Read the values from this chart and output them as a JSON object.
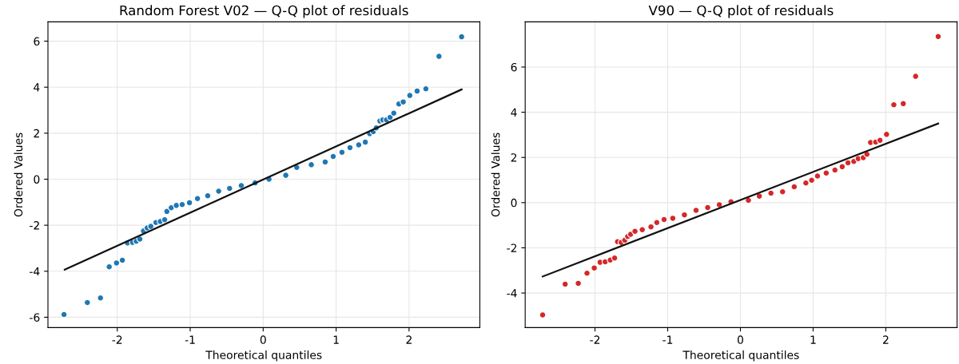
{
  "chart_data": [
    {
      "type": "scatter",
      "title": "Random Forest V02 — Q-Q plot of residuals",
      "xlabel": "Theoretical quantiles",
      "ylabel": "Ordered Values",
      "xlim": [
        -2.95,
        2.97
      ],
      "ylim": [
        -6.45,
        6.84
      ],
      "xticks": [
        -2,
        -1,
        0,
        1,
        2
      ],
      "yticks": [
        -6,
        -4,
        -2,
        0,
        2,
        4,
        6
      ],
      "grid": true,
      "series": [
        {
          "marker": "circle",
          "color": "#1f77b4",
          "x": [
            -2.73,
            -2.41,
            -2.23,
            -2.11,
            -2.01,
            -1.93,
            -1.86,
            -1.79,
            -1.74,
            -1.69,
            -1.64,
            -1.59,
            -1.54,
            -1.47,
            -1.41,
            -1.35,
            -1.32,
            -1.26,
            -1.19,
            -1.11,
            -1.01,
            -0.9,
            -0.76,
            -0.61,
            -0.46,
            -0.3,
            -0.11,
            0.08,
            0.31,
            0.46,
            0.66,
            0.85,
            0.96,
            1.08,
            1.19,
            1.31,
            1.4,
            1.46,
            1.51,
            1.55,
            1.6,
            1.64,
            1.69,
            1.74,
            1.79,
            1.86,
            1.92,
            2.01,
            2.11,
            2.23,
            2.41,
            2.72
          ],
          "values": [
            -5.88,
            -5.36,
            -5.16,
            -3.81,
            -3.64,
            -3.52,
            -2.77,
            -2.75,
            -2.7,
            -2.6,
            -2.25,
            -2.12,
            -2.05,
            -1.88,
            -1.84,
            -1.76,
            -1.4,
            -1.24,
            -1.14,
            -1.1,
            -1.02,
            -0.84,
            -0.72,
            -0.52,
            -0.4,
            -0.28,
            -0.16,
            0.0,
            0.17,
            0.51,
            0.63,
            0.75,
            0.99,
            1.17,
            1.37,
            1.49,
            1.61,
            1.98,
            2.07,
            2.23,
            2.53,
            2.58,
            2.58,
            2.69,
            2.87,
            3.27,
            3.36,
            3.64,
            3.83,
            3.93,
            5.34,
            6.19
          ]
        },
        {
          "type": "line",
          "color": "#111111",
          "x": [
            -2.72,
            2.72
          ],
          "values": [
            -3.93,
            3.9
          ]
        }
      ]
    },
    {
      "type": "scatter",
      "title": "V90 — Q-Q plot of residuals",
      "xlabel": "Theoretical quantiles",
      "ylabel": "Ordered Values",
      "xlim": [
        -2.96,
        2.98
      ],
      "ylim": [
        -5.53,
        8.0
      ],
      "xticks": [
        -2,
        -1,
        0,
        1,
        2
      ],
      "yticks": [
        -4,
        -2,
        0,
        2,
        4,
        6
      ],
      "grid": true,
      "series": [
        {
          "marker": "circle",
          "color": "#d62728",
          "x": [
            -2.72,
            -2.41,
            -2.23,
            -2.11,
            -2.01,
            -1.93,
            -1.86,
            -1.79,
            -1.73,
            -1.69,
            -1.64,
            -1.59,
            -1.55,
            -1.51,
            -1.45,
            -1.35,
            -1.23,
            -1.15,
            -1.05,
            -0.93,
            -0.77,
            -0.61,
            -0.45,
            -0.29,
            -0.13,
            0.11,
            0.26,
            0.42,
            0.58,
            0.74,
            0.9,
            0.98,
            1.06,
            1.18,
            1.3,
            1.4,
            1.48,
            1.56,
            1.62,
            1.69,
            1.74,
            1.79,
            1.86,
            1.92,
            2.01,
            2.11,
            2.24,
            2.41,
            2.72
          ],
          "values": [
            -4.97,
            -3.61,
            -3.57,
            -3.12,
            -2.89,
            -2.64,
            -2.62,
            -2.54,
            -2.45,
            -1.73,
            -1.76,
            -1.66,
            -1.5,
            -1.4,
            -1.27,
            -1.2,
            -1.07,
            -0.88,
            -0.75,
            -0.69,
            -0.54,
            -0.34,
            -0.22,
            -0.09,
            0.04,
            0.1,
            0.29,
            0.42,
            0.48,
            0.7,
            0.87,
            0.99,
            1.18,
            1.31,
            1.44,
            1.59,
            1.76,
            1.82,
            1.95,
            1.99,
            2.14,
            2.66,
            2.68,
            2.76,
            3.02,
            4.33,
            4.38,
            5.59,
            7.35
          ]
        },
        {
          "type": "line",
          "color": "#111111",
          "x": [
            -2.72,
            2.72
          ],
          "values": [
            -3.27,
            3.5
          ]
        }
      ]
    }
  ]
}
